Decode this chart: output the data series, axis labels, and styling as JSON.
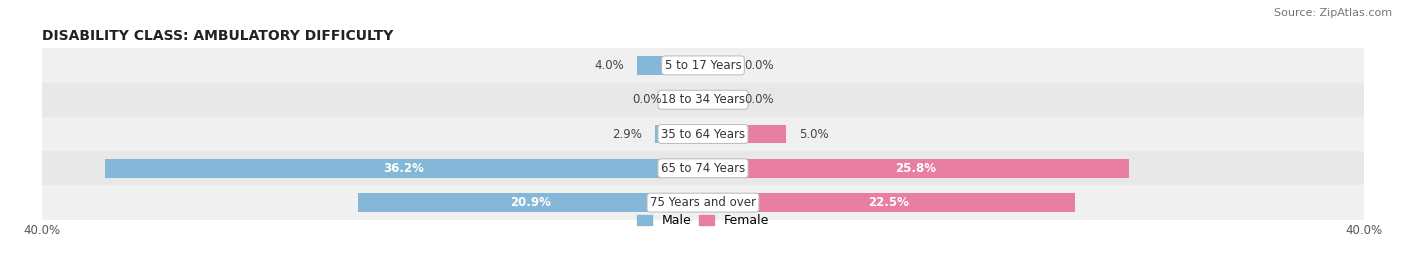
{
  "title": "DISABILITY CLASS: AMBULATORY DIFFICULTY",
  "source": "Source: ZipAtlas.com",
  "categories": [
    "5 to 17 Years",
    "18 to 34 Years",
    "35 to 64 Years",
    "65 to 74 Years",
    "75 Years and over"
  ],
  "male_values": [
    4.0,
    0.0,
    2.9,
    36.2,
    20.9
  ],
  "female_values": [
    0.0,
    0.0,
    5.0,
    25.8,
    22.5
  ],
  "max_val": 40.0,
  "male_color": "#85b8d8",
  "female_color": "#e87ea1",
  "row_colors": [
    "#f0f0f0",
    "#e8e8e8",
    "#f0f0f0",
    "#e8e8e8",
    "#f0f0f0"
  ],
  "title_fontsize": 10,
  "label_fontsize": 8.5,
  "axis_label_fontsize": 8.5,
  "legend_fontsize": 9,
  "source_fontsize": 8
}
